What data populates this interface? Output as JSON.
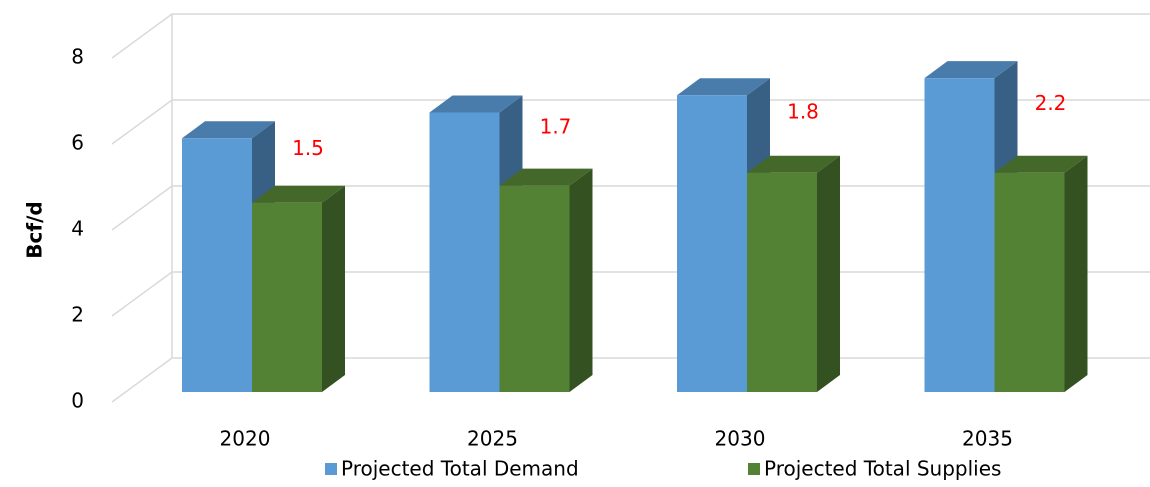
{
  "chart_data": {
    "type": "bar3d",
    "y_label": "Bcf/d",
    "categories": [
      "2020",
      "2025",
      "2030",
      "2035"
    ],
    "series": [
      {
        "name": "Projected Total Demand",
        "color": "#5b9bd5",
        "values": [
          5.9,
          6.5,
          6.9,
          7.3
        ]
      },
      {
        "name": "Projected Total Supplies",
        "color": "#548235",
        "values": [
          4.4,
          4.8,
          5.1,
          5.1
        ]
      }
    ],
    "annotations": [
      1.5,
      1.7,
      1.8,
      2.2
    ],
    "annotation_color": "#ff0000",
    "ylim": [
      0,
      8
    ],
    "yticks": [
      0,
      2,
      4,
      6,
      8
    ],
    "grid": true,
    "legend": "bottom"
  }
}
